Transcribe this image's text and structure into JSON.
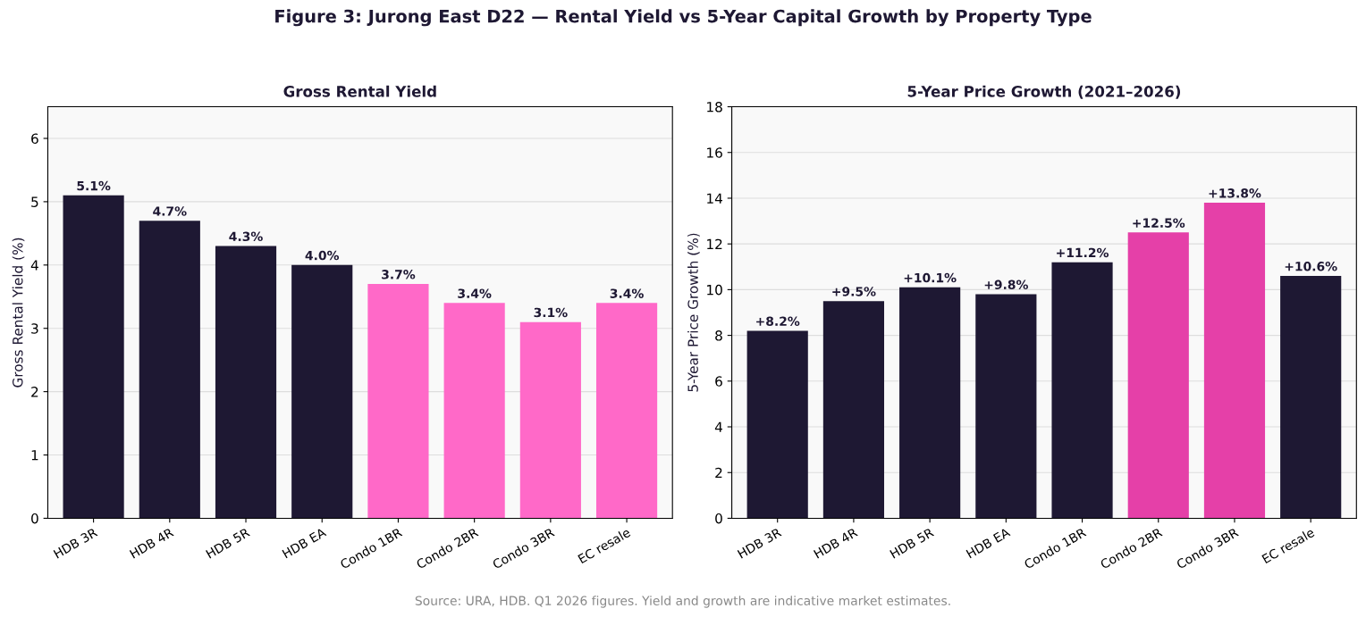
{
  "chart_data": [
    {
      "type": "bar",
      "title": "Gross Rental Yield",
      "ylabel": "Gross Rental Yield (%)",
      "categories": [
        "HDB 3R",
        "HDB 4R",
        "HDB 5R",
        "HDB EA",
        "Condo 1BR",
        "Condo 2BR",
        "Condo 3BR",
        "EC resale"
      ],
      "values": [
        5.1,
        4.7,
        4.3,
        4.0,
        3.7,
        3.4,
        3.1,
        3.4
      ],
      "colors": [
        "#1e1833",
        "#1e1833",
        "#1e1833",
        "#1e1833",
        "#ff69c8",
        "#ff69c8",
        "#ff69c8",
        "#ff69c8"
      ],
      "value_labels": [
        "5.1%",
        "4.7%",
        "4.3%",
        "4.0%",
        "3.7%",
        "3.4%",
        "3.1%",
        "3.4%"
      ],
      "ylim": [
        0,
        6.5
      ],
      "yticks": [
        0,
        1,
        2,
        3,
        4,
        5,
        6
      ],
      "grid": "y"
    },
    {
      "type": "bar",
      "title": "5-Year Price Growth (2021–2026)",
      "ylabel": "5-Year Price Growth (%)",
      "categories": [
        "HDB 3R",
        "HDB 4R",
        "HDB 5R",
        "HDB EA",
        "Condo 1BR",
        "Condo 2BR",
        "Condo 3BR",
        "EC resale"
      ],
      "values": [
        8.2,
        9.5,
        10.1,
        9.8,
        11.2,
        12.5,
        13.8,
        10.6
      ],
      "colors": [
        "#1e1833",
        "#1e1833",
        "#1e1833",
        "#1e1833",
        "#1e1833",
        "#e540a8",
        "#e540a8",
        "#1e1833"
      ],
      "value_labels": [
        "+8.2%",
        "+9.5%",
        "+10.1%",
        "+9.8%",
        "+11.2%",
        "+12.5%",
        "+13.8%",
        "+10.6%"
      ],
      "ylim": [
        0,
        18
      ],
      "yticks": [
        0,
        2,
        4,
        6,
        8,
        10,
        12,
        14,
        16,
        18
      ],
      "grid": "y",
      "annotations": [
        "Figure 3: Jurong East D22 — Rental Yield vs 5-Year Capital Growth by Property Type",
        "Source: URA, HDB. Q1 2026 figures. Yield and growth are indicative market estimates."
      ]
    }
  ]
}
